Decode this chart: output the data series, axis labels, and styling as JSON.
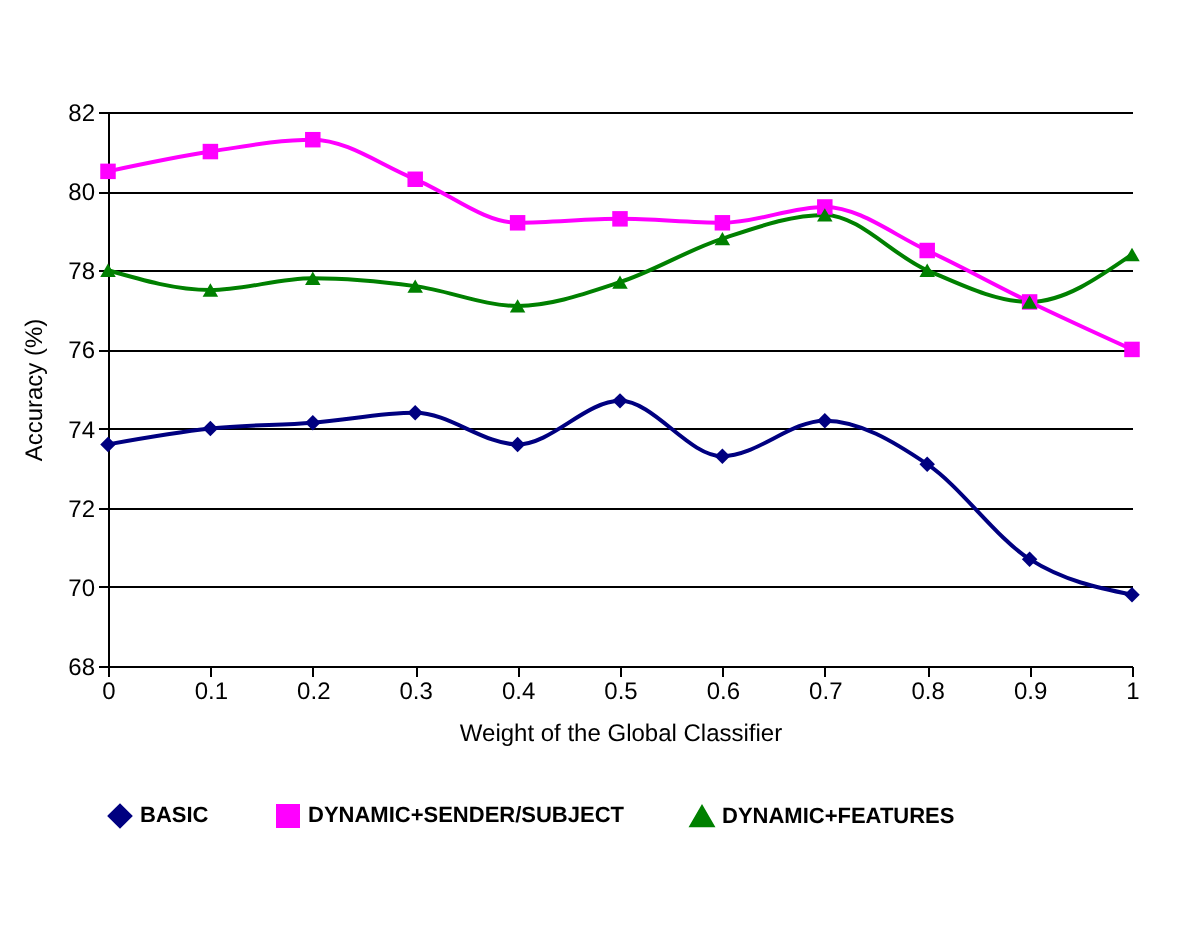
{
  "chart_data": {
    "type": "line",
    "xlabel": "Weight of the Global Classifier",
    "ylabel": "Accuracy (%)",
    "x": [
      0,
      0.1,
      0.2,
      0.3,
      0.4,
      0.5,
      0.6,
      0.7,
      0.8,
      0.9,
      1
    ],
    "series": [
      {
        "name": "BASIC",
        "color": "#000080",
        "marker": "diamond",
        "values": [
          73.6,
          74.0,
          74.15,
          74.4,
          73.6,
          74.7,
          73.3,
          74.2,
          73.1,
          70.7,
          69.8
        ]
      },
      {
        "name": "DYNAMIC+SENDER/SUBJECT",
        "color": "#ff00ff",
        "marker": "square",
        "values": [
          80.5,
          81.0,
          81.3,
          80.3,
          79.2,
          79.3,
          79.2,
          79.6,
          78.5,
          77.2,
          76.0
        ]
      },
      {
        "name": "DYNAMIC+FEATURES",
        "color": "#008000",
        "marker": "triangle",
        "values": [
          78.0,
          77.5,
          77.8,
          77.6,
          77.1,
          77.7,
          78.8,
          79.4,
          78.0,
          77.2,
          78.4
        ]
      }
    ],
    "xlim": [
      0,
      1
    ],
    "xticks": [
      0,
      0.1,
      0.2,
      0.3,
      0.4,
      0.5,
      0.6,
      0.7,
      0.8,
      0.9,
      1
    ],
    "ylim": [
      68,
      82
    ],
    "yticks": [
      68,
      70,
      72,
      74,
      76,
      78,
      80,
      82
    ],
    "grid": "y",
    "legend": "bottom"
  }
}
